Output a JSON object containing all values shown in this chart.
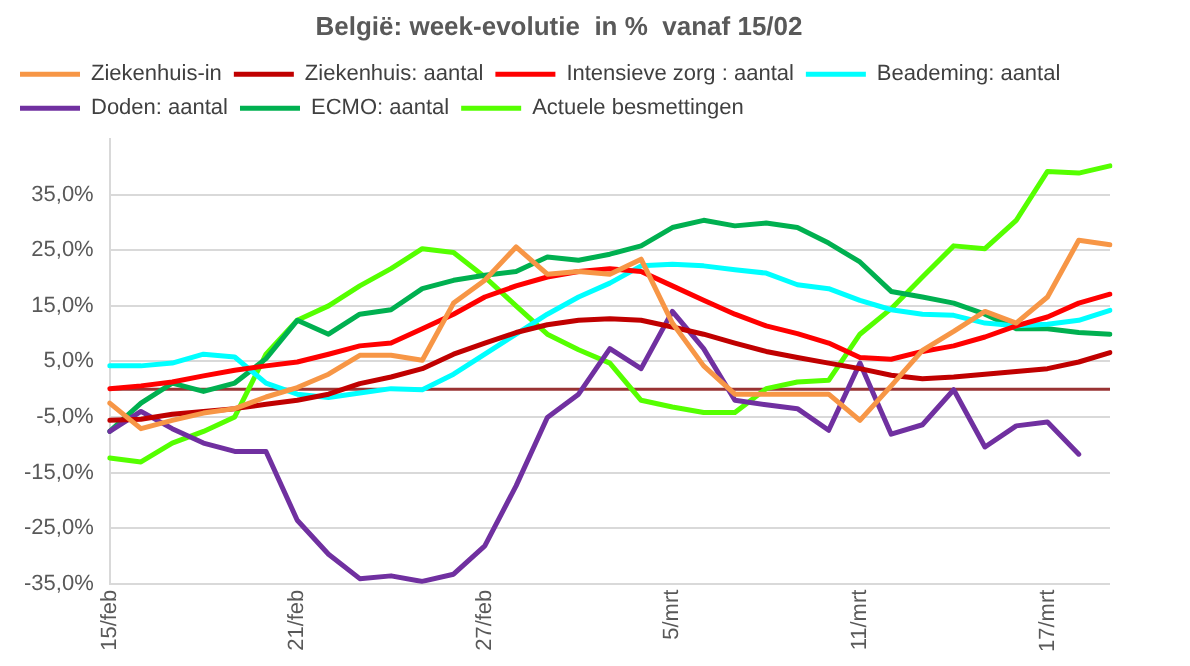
{
  "chart_data": {
    "type": "line",
    "title": "België: week-evolutie  in %  vanaf 15/02",
    "categories": [
      "15/feb",
      null,
      null,
      null,
      null,
      null,
      "21/feb",
      null,
      null,
      null,
      null,
      null,
      "27/feb",
      null,
      null,
      null,
      null,
      null,
      "5/mrt",
      null,
      null,
      null,
      null,
      null,
      "11/mrt",
      null,
      null,
      null,
      null,
      null,
      "17/mrt",
      null,
      null
    ],
    "series": [
      {
        "name": "Ziekenhuis-in",
        "color": "#f79646",
        "values": [
          -2.5,
          -7.1,
          -5.6,
          -4.3,
          -3.5,
          -1.4,
          0.3,
          2.7,
          6.1,
          6.1,
          5.2,
          15.5,
          19.6,
          25.6,
          20.7,
          21.2,
          20.7,
          23.4,
          11.9,
          4.2,
          -0.9,
          -0.9,
          -0.9,
          -0.9,
          -5.6,
          0.6,
          7.0,
          10.4,
          14.0,
          11.9,
          16.6,
          26.8,
          26.0
        ]
      },
      {
        "name": "Ziekenhuis: aantal",
        "color": "#c00000",
        "values": [
          -5.6,
          -5.4,
          -4.5,
          -4.0,
          -3.5,
          -2.7,
          -2.0,
          -0.9,
          1.0,
          2.2,
          3.7,
          6.3,
          8.3,
          10.2,
          11.6,
          12.4,
          12.7,
          12.4,
          11.2,
          9.9,
          8.3,
          6.8,
          5.7,
          4.7,
          3.7,
          2.5,
          1.9,
          2.2,
          2.7,
          3.2,
          3.7,
          4.9,
          6.6
        ]
      },
      {
        "name": "Intensieve zorg : aantal",
        "color": "#ff0000",
        "values": [
          0.1,
          0.6,
          1.3,
          2.4,
          3.4,
          4.2,
          4.9,
          6.3,
          7.8,
          8.3,
          10.9,
          13.5,
          16.6,
          18.6,
          20.2,
          21.2,
          21.7,
          21.2,
          18.6,
          16.0,
          13.5,
          11.4,
          10.0,
          8.3,
          5.7,
          5.4,
          6.8,
          7.8,
          9.4,
          11.4,
          13.0,
          15.5,
          17.1
        ]
      },
      {
        "name": "Beademing: aantal",
        "color": "#00ffff",
        "values": [
          4.2,
          4.2,
          4.7,
          6.3,
          5.8,
          1.1,
          -0.9,
          -1.5,
          -0.7,
          0.1,
          -0.1,
          2.7,
          6.3,
          9.9,
          13.5,
          16.6,
          19.1,
          22.2,
          22.5,
          22.2,
          21.5,
          20.9,
          18.8,
          18.1,
          16.0,
          14.3,
          13.5,
          13.3,
          11.9,
          11.4,
          11.7,
          12.4,
          14.2
        ]
      },
      {
        "name": "Doden: aantal",
        "color": "#7030a0",
        "values": [
          -7.6,
          -4.0,
          -7.1,
          -9.7,
          -11.2,
          -11.2,
          -23.6,
          -29.7,
          -34.1,
          -33.6,
          -34.6,
          -33.3,
          -28.2,
          -17.4,
          -5.1,
          -0.9,
          7.3,
          3.7,
          14.0,
          7.3,
          -2.0,
          -2.8,
          -3.5,
          -7.4,
          4.7,
          -8.1,
          -6.4,
          -0.1,
          -10.4,
          -6.6,
          -5.9,
          -11.7,
          null
        ]
      },
      {
        "name": "ECMO: aantal",
        "color": "#00b050",
        "values": [
          -7.6,
          -2.5,
          1.1,
          -0.4,
          1.1,
          5.5,
          12.4,
          9.9,
          13.5,
          14.3,
          18.1,
          19.6,
          20.5,
          21.2,
          23.8,
          23.2,
          24.3,
          25.8,
          29.1,
          30.4,
          29.4,
          29.9,
          29.1,
          26.3,
          22.9,
          17.6,
          16.6,
          15.5,
          13.5,
          10.9,
          10.9,
          10.2,
          9.9
        ]
      },
      {
        "name": "Actuele besmettingen",
        "color": "#55ff00",
        "values": [
          -12.4,
          -13.1,
          -9.7,
          -7.6,
          -5.0,
          6.3,
          12.4,
          15.0,
          18.6,
          21.7,
          25.3,
          24.6,
          20.2,
          15.0,
          9.9,
          7.1,
          4.7,
          -2.0,
          -3.2,
          -4.2,
          -4.2,
          0.1,
          1.3,
          1.6,
          9.9,
          14.5,
          20.2,
          25.8,
          25.3,
          30.4,
          39.2,
          38.9,
          40.2
        ]
      }
    ],
    "ylim": [
      -35,
      45
    ],
    "yticks": [
      {
        "value": -35,
        "label": "-35,0%"
      },
      {
        "value": -25,
        "label": "-25,0%"
      },
      {
        "value": -15,
        "label": "-15,0%"
      },
      {
        "value": -5,
        "label": "-5,0%"
      },
      {
        "value": 5,
        "label": "5,0%"
      },
      {
        "value": 15,
        "label": "15,0%"
      },
      {
        "value": 25,
        "label": "25,0%"
      },
      {
        "value": 35,
        "label": "35,0%"
      }
    ],
    "ref_lines": [
      {
        "axis": "y",
        "value": 0,
        "color": "#993333"
      }
    ],
    "grid": "y",
    "legend": "top left",
    "marker": "none"
  }
}
